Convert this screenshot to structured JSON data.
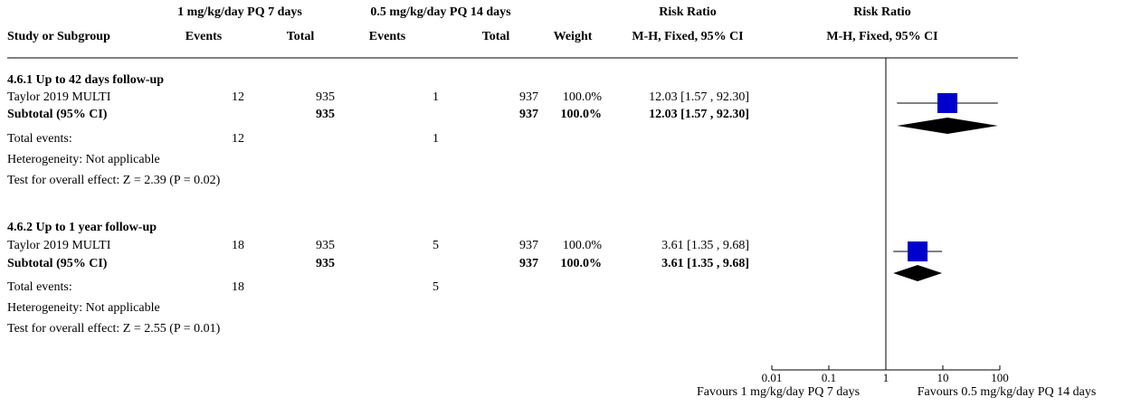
{
  "header": {
    "exp_group": "1 mg/kg/day PQ 7 days",
    "ctl_group": "0.5 mg/kg/day PQ 14 days",
    "rr_title_1": "Risk Ratio",
    "rr_title_2": "Risk Ratio",
    "study_col": "Study or Subgroup",
    "events_exp": "Events",
    "total_exp": "Total",
    "events_ctl": "Events",
    "total_ctl": "Total",
    "weight": "Weight",
    "method_1": "M-H, Fixed, 95% CI",
    "method_2": "M-H, Fixed, 95% CI"
  },
  "subgroups": [
    {
      "title": "4.6.1 Up to 42 days follow-up",
      "study": {
        "name": "Taylor 2019 MULTI",
        "events_exp": "12",
        "total_exp": "935",
        "events_ctl": "1",
        "total_ctl": "937",
        "weight": "100.0%",
        "ci_text": "12.03 [1.57 , 92.30]"
      },
      "subtotal": {
        "label": "Subtotal (95% CI)",
        "total_exp": "935",
        "total_ctl": "937",
        "weight": "100.0%",
        "ci_text": "12.03 [1.57 , 92.30]"
      },
      "total_events": {
        "label": "Total events:",
        "exp": "12",
        "ctl": "1"
      },
      "heterogeneity": "Heterogeneity: Not applicable",
      "overall_effect": "Test for overall effect: Z = 2.39 (P = 0.02)"
    },
    {
      "title": "4.6.2 Up to 1 year follow-up",
      "study": {
        "name": "Taylor 2019 MULTI",
        "events_exp": "18",
        "total_exp": "935",
        "events_ctl": "5",
        "total_ctl": "937",
        "weight": "100.0%",
        "ci_text": "3.61 [1.35 , 9.68]"
      },
      "subtotal": {
        "label": "Subtotal (95% CI)",
        "total_exp": "935",
        "total_ctl": "937",
        "weight": "100.0%",
        "ci_text": "3.61 [1.35 , 9.68]"
      },
      "total_events": {
        "label": "Total events:",
        "exp": "18",
        "ctl": "5"
      },
      "heterogeneity": "Heterogeneity: Not applicable",
      "overall_effect": "Test for overall effect: Z = 2.55 (P = 0.01)"
    }
  ],
  "axis": {
    "favours_left": "Favours 1 mg/kg/day PQ 7 days",
    "favours_right": "Favours 0.5 mg/kg/day PQ 14 days"
  },
  "chart_data": {
    "type": "forest",
    "scale": "log",
    "xlim": [
      0.01,
      100
    ],
    "ticks": [
      {
        "value": 0.01,
        "label": "0.01"
      },
      {
        "value": 0.1,
        "label": "0.1"
      },
      {
        "value": 1,
        "label": "1"
      },
      {
        "value": 10,
        "label": "10"
      },
      {
        "value": 100,
        "label": "100"
      }
    ],
    "null_line": 1,
    "rows": [
      {
        "kind": "study",
        "subgroup": "4.6.1 Up to 42 days follow-up",
        "rr": 12.03,
        "lo": 1.57,
        "hi": 92.3,
        "weight": 100.0
      },
      {
        "kind": "subtotal",
        "subgroup": "4.6.1 Up to 42 days follow-up",
        "rr": 12.03,
        "lo": 1.57,
        "hi": 92.3
      },
      {
        "kind": "study",
        "subgroup": "4.6.2 Up to 1 year follow-up",
        "rr": 3.61,
        "lo": 1.35,
        "hi": 9.68,
        "weight": 100.0
      },
      {
        "kind": "subtotal",
        "subgroup": "4.6.2 Up to 1 year follow-up",
        "rr": 3.61,
        "lo": 1.35,
        "hi": 9.68
      }
    ],
    "colors": {
      "study_marker": "#0000cc",
      "diamond": "#000000",
      "line": "#000000"
    }
  }
}
